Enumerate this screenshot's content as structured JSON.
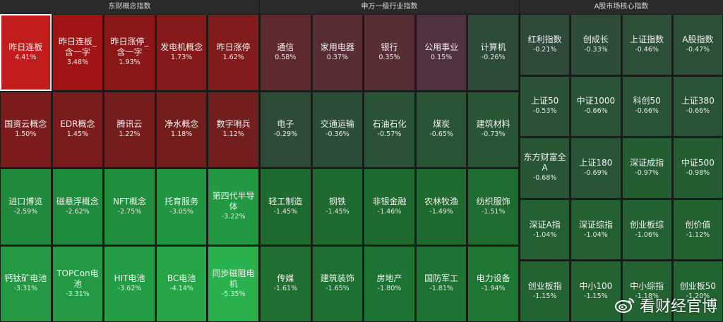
{
  "sections": [
    {
      "header": "东财概念指数",
      "tiles": [
        {
          "name": "昨日连板",
          "pct": "4.41%",
          "color": "#c11d1d",
          "selected": true
        },
        {
          "name": "昨日连板_含一字",
          "pct": "3.48%",
          "color": "#a01414"
        },
        {
          "name": "昨日涨停_含一字",
          "pct": "1.93%",
          "color": "#8a1818"
        },
        {
          "name": "发电机概念",
          "pct": "1.73%",
          "color": "#841a1a"
        },
        {
          "name": "昨日涨停",
          "pct": "1.62%",
          "color": "#821b1b"
        },
        {
          "name": "国资云概念",
          "pct": "1.50%",
          "color": "#7d1c1c"
        },
        {
          "name": "EDR概念",
          "pct": "1.45%",
          "color": "#7b1c1c"
        },
        {
          "name": "腾讯云",
          "pct": "1.22%",
          "color": "#751d1d"
        },
        {
          "name": "净水概念",
          "pct": "1.18%",
          "color": "#741d1d"
        },
        {
          "name": "数字哨兵",
          "pct": "1.12%",
          "color": "#721e1e"
        },
        {
          "name": "进口博览",
          "pct": "-2.59%",
          "color": "#1f8a3c"
        },
        {
          "name": "磁悬浮概念",
          "pct": "-2.62%",
          "color": "#1f8b3c"
        },
        {
          "name": "NFT概念",
          "pct": "-2.75%",
          "color": "#208e3d"
        },
        {
          "name": "托育服务",
          "pct": "-3.05%",
          "color": "#219540"
        },
        {
          "name": "第四代半导体",
          "pct": "-3.22%",
          "color": "#229841"
        },
        {
          "name": "钙钛矿电池",
          "pct": "-3.31%",
          "color": "#229942"
        },
        {
          "name": "TOPCon电池",
          "pct": "-3.31%",
          "color": "#229942"
        },
        {
          "name": "HIT电池",
          "pct": "-3.62%",
          "color": "#239e44"
        },
        {
          "name": "BC电池",
          "pct": "-4.14%",
          "color": "#25a546"
        },
        {
          "name": "同步磁阻电机",
          "pct": "-5.35%",
          "color": "#28b14c"
        }
      ]
    },
    {
      "header": "申万一级行业指数",
      "tiles": [
        {
          "name": "通信",
          "pct": "0.58%",
          "color": "#5e2a2e"
        },
        {
          "name": "家用电器",
          "pct": "0.37%",
          "color": "#582d33"
        },
        {
          "name": "银行",
          "pct": "0.35%",
          "color": "#572e34"
        },
        {
          "name": "公用事业",
          "pct": "0.15%",
          "color": "#4f3140"
        },
        {
          "name": "计算机",
          "pct": "-0.26%",
          "color": "#2e4a38"
        },
        {
          "name": "电子",
          "pct": "-0.29%",
          "color": "#2d4b37"
        },
        {
          "name": "交通运输",
          "pct": "-0.36%",
          "color": "#2c4d37"
        },
        {
          "name": "石油石化",
          "pct": "-0.57%",
          "color": "#2a5236"
        },
        {
          "name": "煤炭",
          "pct": "-0.65%",
          "color": "#295435"
        },
        {
          "name": "建筑材料",
          "pct": "-0.73%",
          "color": "#285634"
        },
        {
          "name": "轻工制造",
          "pct": "-1.45%",
          "color": "#1f6a2f"
        },
        {
          "name": "钢铁",
          "pct": "-1.45%",
          "color": "#1f6a2f"
        },
        {
          "name": "非银金融",
          "pct": "-1.46%",
          "color": "#1f6a2f"
        },
        {
          "name": "农林牧渔",
          "pct": "-1.49%",
          "color": "#1f6b2f"
        },
        {
          "name": "纺织服饰",
          "pct": "-1.51%",
          "color": "#1f6c30"
        },
        {
          "name": "传媒",
          "pct": "-1.61%",
          "color": "#1e6f30"
        },
        {
          "name": "建筑装饰",
          "pct": "-1.65%",
          "color": "#1e7031"
        },
        {
          "name": "房地产",
          "pct": "-1.80%",
          "color": "#1d7432"
        },
        {
          "name": "国防军工",
          "pct": "-1.81%",
          "color": "#1d7432"
        },
        {
          "name": "电力设备",
          "pct": "-1.94%",
          "color": "#1d7733"
        }
      ]
    },
    {
      "header": "A股市场核心指数",
      "tiles": [
        {
          "name": "红利指数",
          "pct": "-0.21%",
          "color": "#2f4a39"
        },
        {
          "name": "创成长",
          "pct": "-0.33%",
          "color": "#2d4d38"
        },
        {
          "name": "上证指数",
          "pct": "-0.46%",
          "color": "#2b5037"
        },
        {
          "name": "A股指数",
          "pct": "-0.47%",
          "color": "#2b5037"
        },
        {
          "name": "上证50",
          "pct": "-0.53%",
          "color": "#2a5236"
        },
        {
          "name": "中证1000",
          "pct": "-0.66%",
          "color": "#295435"
        },
        {
          "name": "科创50",
          "pct": "-0.66%",
          "color": "#295435"
        },
        {
          "name": "上证380",
          "pct": "-0.66%",
          "color": "#295435"
        },
        {
          "name": "东方财富全A",
          "pct": "-0.68%",
          "color": "#285534"
        },
        {
          "name": "上证180",
          "pct": "-0.69%",
          "color": "#285534"
        },
        {
          "name": "深证成指",
          "pct": "-0.97%",
          "color": "#255d33"
        },
        {
          "name": "中证500",
          "pct": "-0.98%",
          "color": "#255d33"
        },
        {
          "name": "深证A指",
          "pct": "-1.04%",
          "color": "#245f32"
        },
        {
          "name": "深证综指",
          "pct": "-1.04%",
          "color": "#245f32"
        },
        {
          "name": "创业板综",
          "pct": "-1.06%",
          "color": "#236032"
        },
        {
          "name": "创价值",
          "pct": "-1.12%",
          "color": "#236131"
        },
        {
          "name": "创业板指",
          "pct": "-1.15%",
          "color": "#236231"
        },
        {
          "name": "中小100",
          "pct": "-1.15%",
          "color": "#236231"
        },
        {
          "name": "中小综指",
          "pct": "-1.18%",
          "color": "#226331"
        },
        {
          "name": "创业板50",
          "pct": "-1.20%",
          "color": "#226431"
        }
      ]
    }
  ],
  "watermark": {
    "text": "看财经官博",
    "icon": "weibo-logo-icon"
  }
}
